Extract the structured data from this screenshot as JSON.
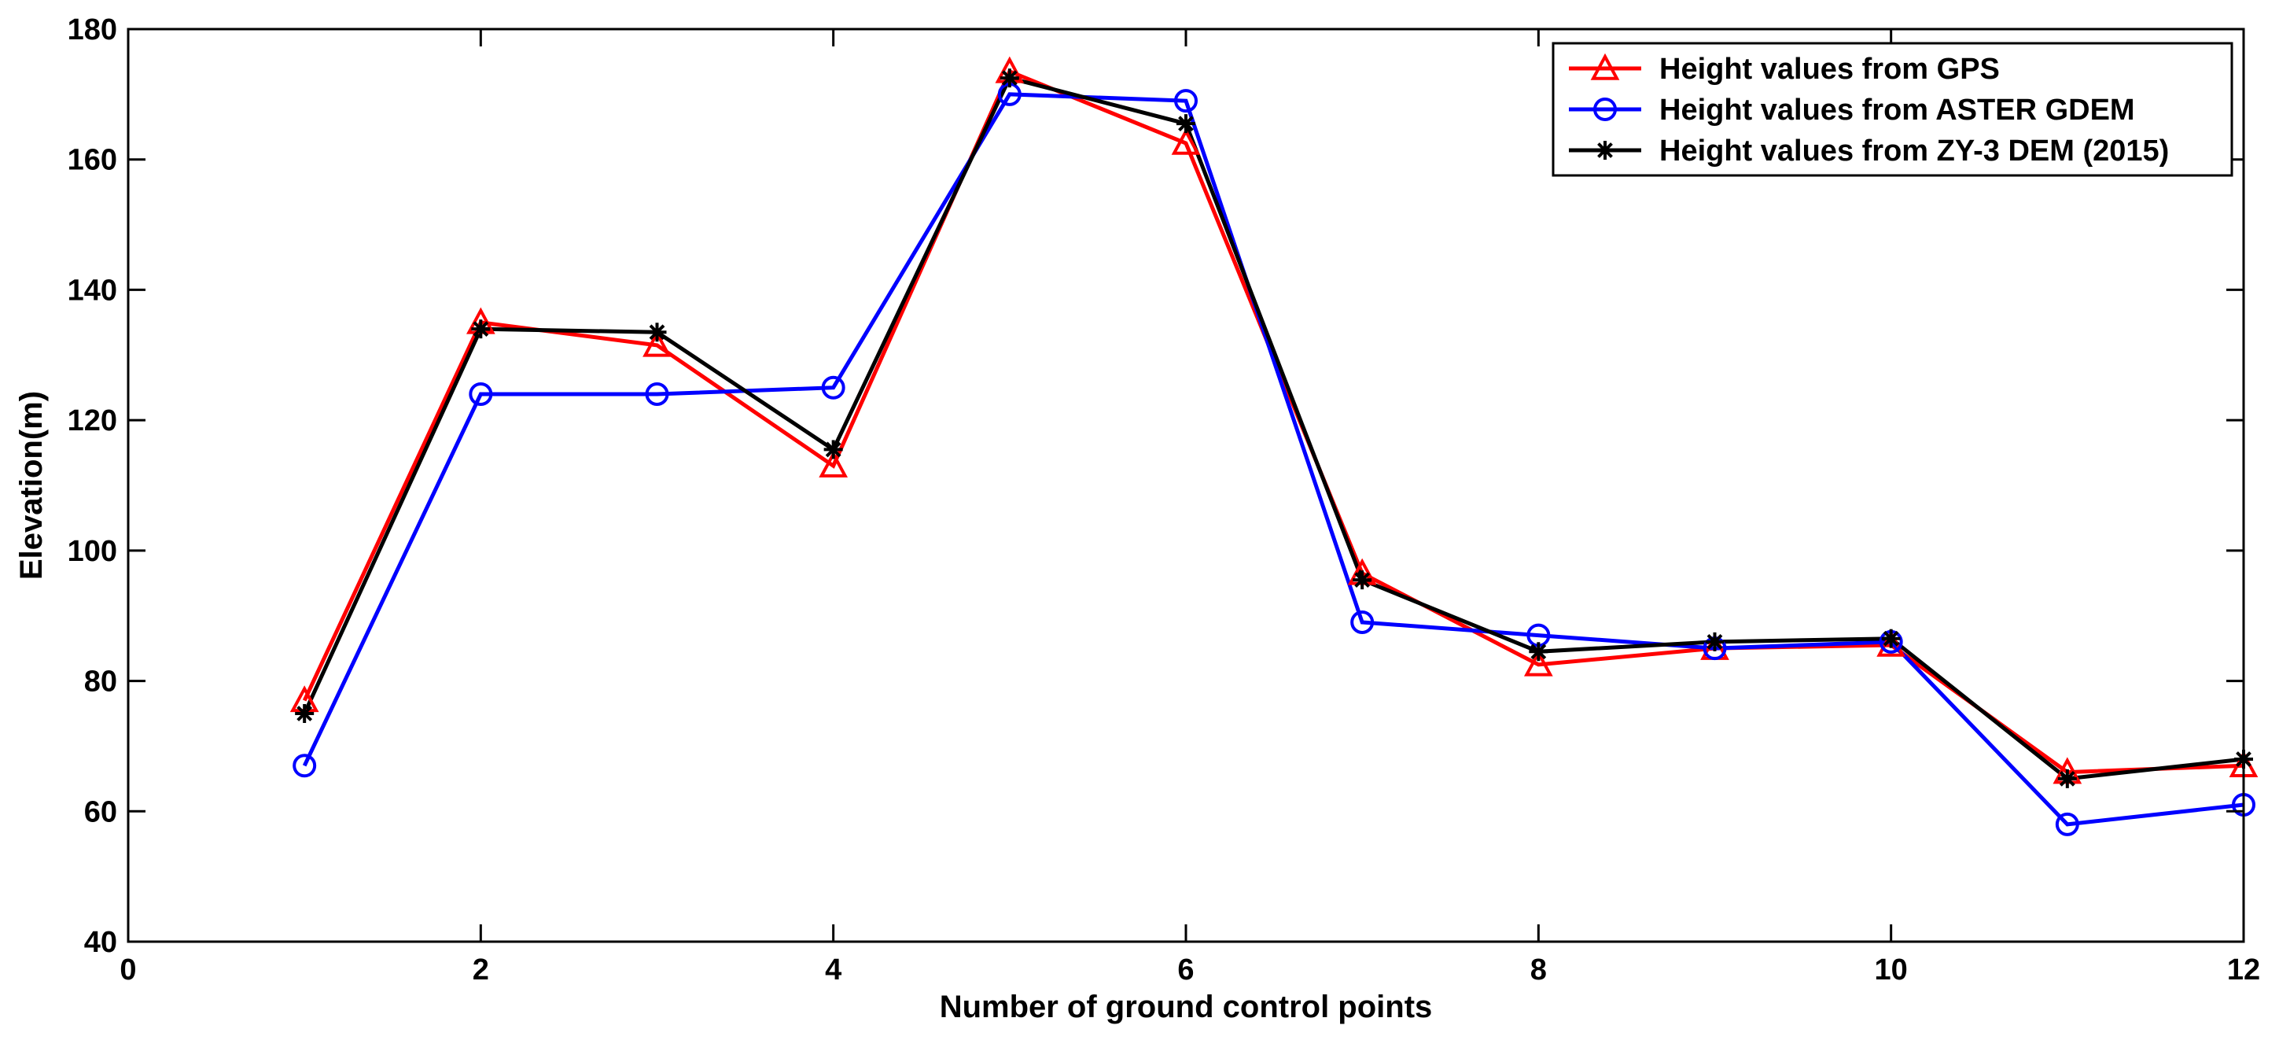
{
  "chart_data": {
    "type": "line",
    "title": "",
    "xlabel": "Number of ground control points",
    "ylabel": "Elevation(m)",
    "xlim": [
      0,
      12
    ],
    "ylim": [
      40,
      180
    ],
    "x_ticks": [
      0,
      2,
      4,
      6,
      8,
      10,
      12
    ],
    "y_ticks": [
      40,
      60,
      80,
      100,
      120,
      140,
      160,
      180
    ],
    "x_tick_labels": [
      "0",
      "2",
      "4",
      "6",
      "8",
      "10",
      "12"
    ],
    "y_tick_labels": [
      "40",
      "60",
      "80",
      "100",
      "120",
      "140",
      "160",
      "180"
    ],
    "grid": false,
    "legend_position": "top-right",
    "x": [
      1,
      2,
      3,
      4,
      5,
      6,
      7,
      8,
      9,
      10,
      11,
      12
    ],
    "series": [
      {
        "name": "Height values from GPS",
        "color": "#ff0000",
        "marker": "triangle",
        "values": [
          77,
          135,
          131.5,
          113,
          173.5,
          162.5,
          96.5,
          82.5,
          85,
          85.5,
          66,
          67
        ]
      },
      {
        "name": "Height values from ASTER GDEM",
        "color": "#0000ff",
        "marker": "circle",
        "values": [
          67,
          124,
          124,
          125,
          170,
          169,
          89,
          87,
          85,
          86,
          58,
          61
        ]
      },
      {
        "name": "Height values from ZY-3 DEM (2015)",
        "color": "#000000",
        "marker": "asterisk",
        "values": [
          75,
          134,
          133.5,
          115.5,
          172.5,
          165.5,
          95.5,
          84.5,
          86,
          86.5,
          65,
          68
        ]
      }
    ]
  }
}
